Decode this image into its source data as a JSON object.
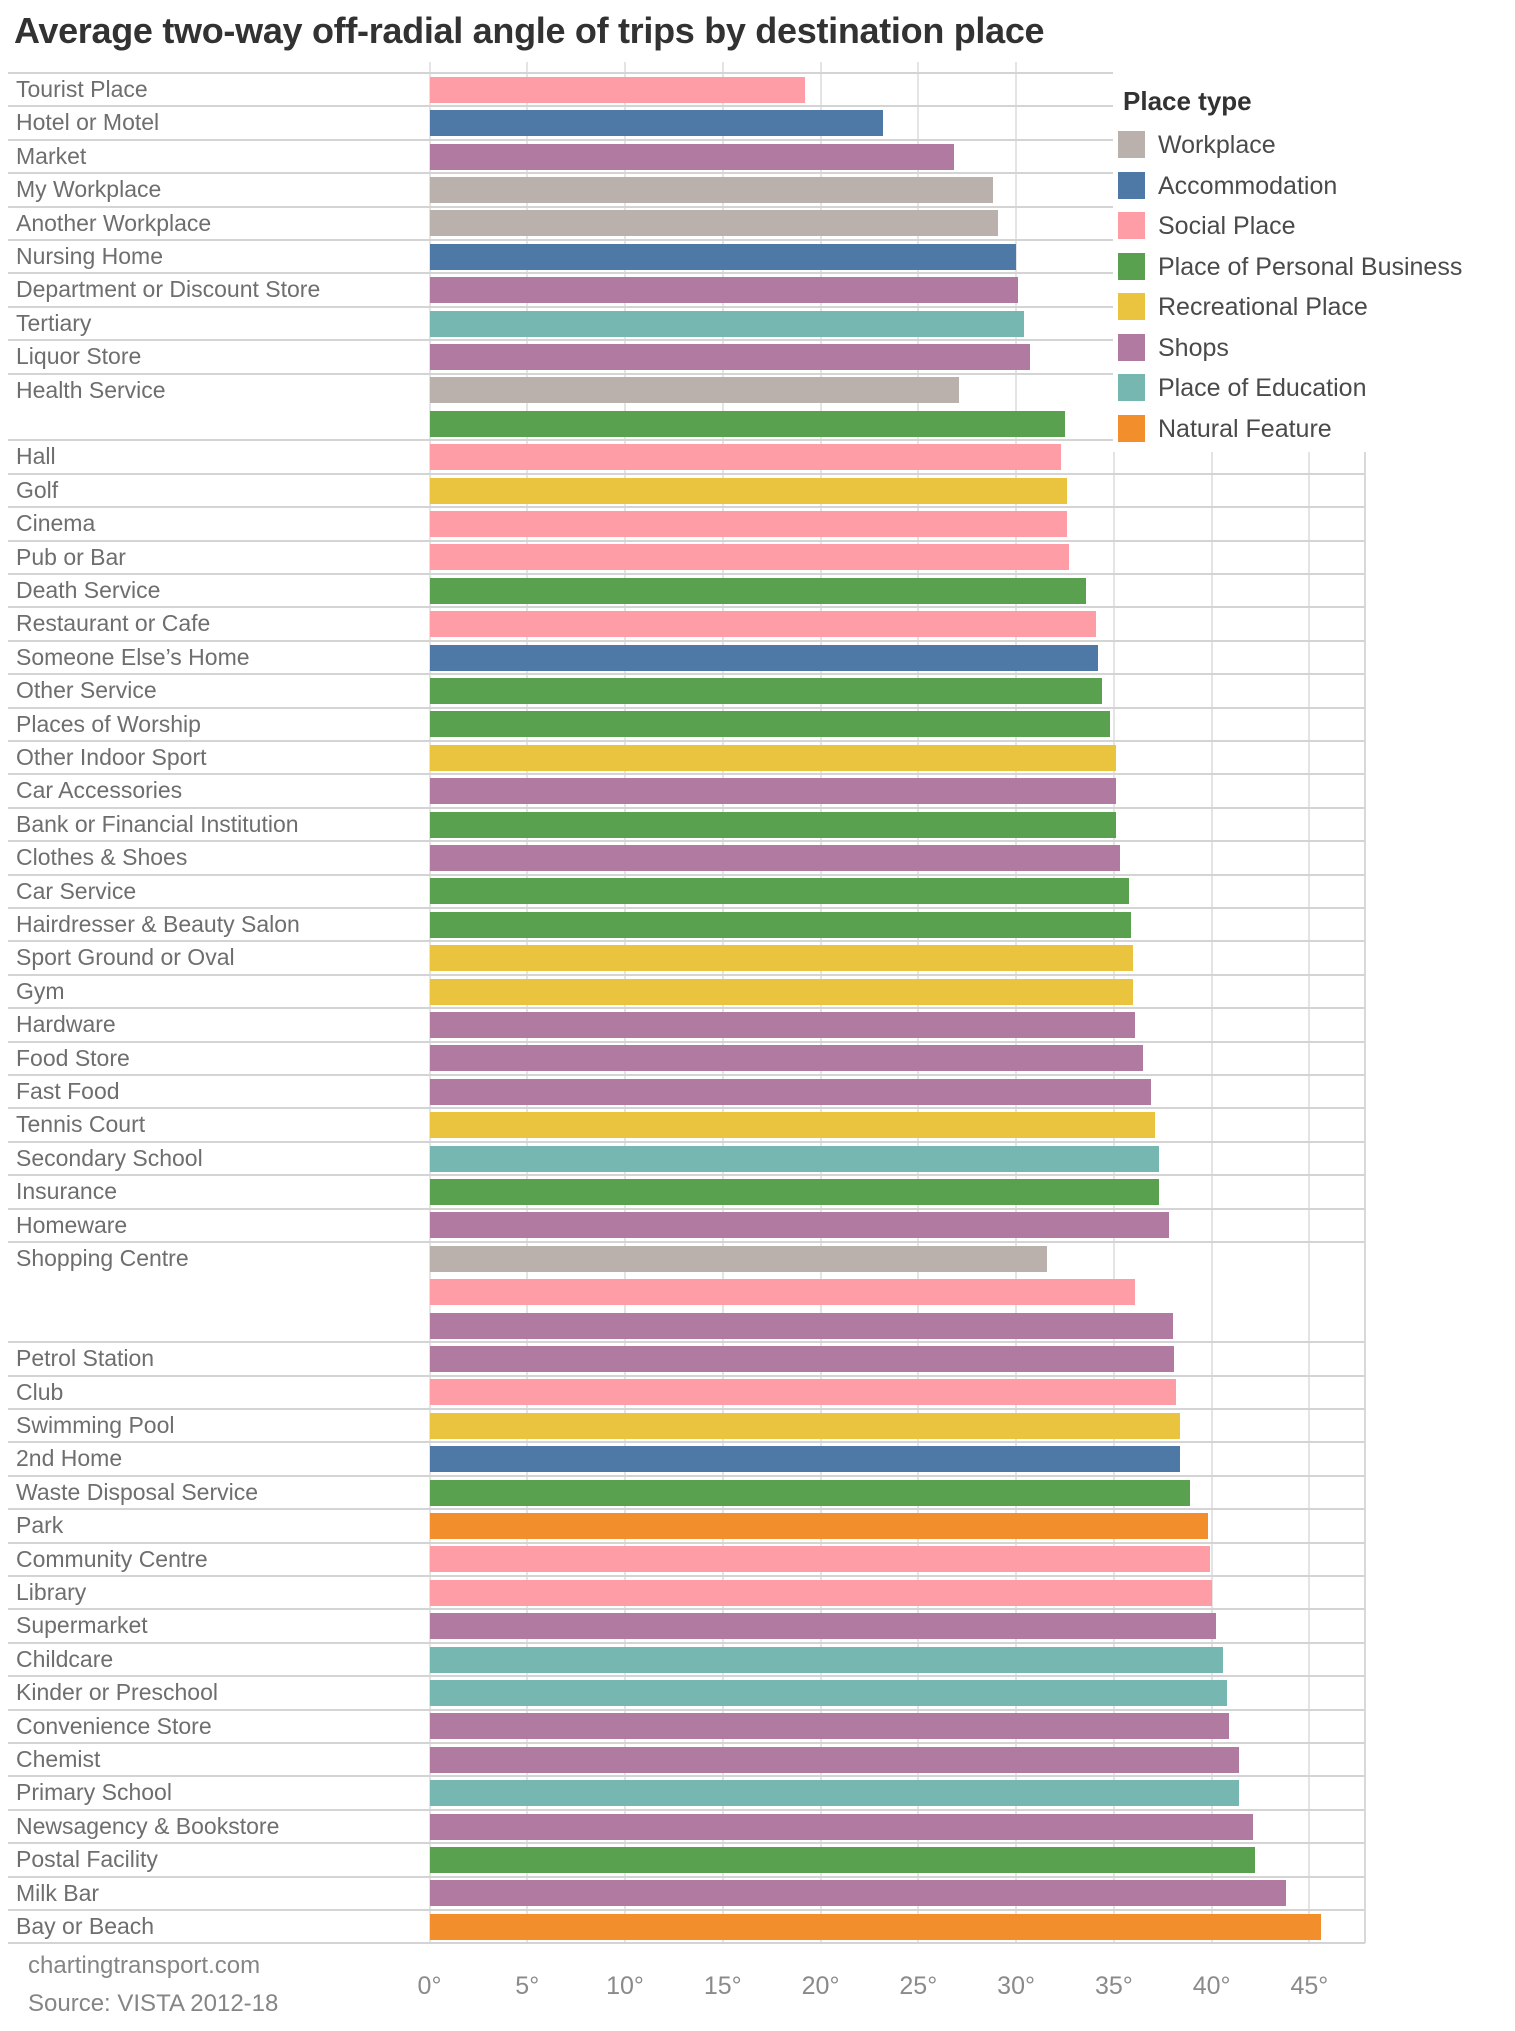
{
  "title": "Average two-way off-radial angle of trips by destination place",
  "footer": {
    "line1": "chartingtransport.com",
    "line2": "Source: VISTA 2012-18"
  },
  "legend": {
    "title": "Place type",
    "items": [
      {
        "key": "workplace",
        "label": "Workplace",
        "color": "#bab0ac"
      },
      {
        "key": "accommodation",
        "label": "Accommodation",
        "color": "#4e79a7"
      },
      {
        "key": "social",
        "label": "Social Place",
        "color": "#ff9da7"
      },
      {
        "key": "personal_business",
        "label": "Place of Personal Business",
        "color": "#59a14f"
      },
      {
        "key": "recreational",
        "label": "Recreational Place",
        "color": "#eac43f"
      },
      {
        "key": "shops",
        "label": "Shops",
        "color": "#b07aa1"
      },
      {
        "key": "education",
        "label": "Place of Education",
        "color": "#76b7b2"
      },
      {
        "key": "natural",
        "label": "Natural Feature",
        "color": "#f28e2b"
      }
    ]
  },
  "axis": {
    "ticks": [
      0,
      5,
      10,
      15,
      20,
      25,
      30,
      35,
      40,
      45
    ],
    "unit": "°"
  },
  "chart_data": {
    "type": "bar",
    "orientation": "horizontal",
    "title": "Average two-way off-radial angle of trips by destination place",
    "value_unit": "degrees",
    "xlim": [
      0,
      47.8
    ],
    "grid": true,
    "legend_position": "top-right",
    "rows": [
      {
        "label": "Tourist Place",
        "place_type": "social",
        "value": 19.2
      },
      {
        "label": "Hotel or Motel",
        "place_type": "accommodation",
        "value": 23.2
      },
      {
        "label": "Market",
        "place_type": "shops",
        "value": 26.8
      },
      {
        "label": "My Workplace",
        "place_type": "workplace",
        "value": 28.8
      },
      {
        "label": "Another Workplace",
        "place_type": "workplace",
        "value": 29.1
      },
      {
        "label": "Nursing Home",
        "place_type": "accommodation",
        "value": 30.0
      },
      {
        "label": "Department or Discount Store",
        "place_type": "shops",
        "value": 30.1
      },
      {
        "label": "Tertiary",
        "place_type": "education",
        "value": 30.4
      },
      {
        "label": "Liquor Store",
        "place_type": "shops",
        "value": 30.7
      },
      {
        "label": "Health Service",
        "place_type": "workplace",
        "value": 27.1
      },
      {
        "label": "",
        "place_type": "personal_business",
        "value": 32.5
      },
      {
        "label": "Hall",
        "place_type": "social",
        "value": 32.3
      },
      {
        "label": "Golf",
        "place_type": "recreational",
        "value": 32.6
      },
      {
        "label": "Cinema",
        "place_type": "social",
        "value": 32.6
      },
      {
        "label": "Pub or Bar",
        "place_type": "social",
        "value": 32.7
      },
      {
        "label": "Death Service",
        "place_type": "personal_business",
        "value": 33.6
      },
      {
        "label": "Restaurant or Cafe",
        "place_type": "social",
        "value": 34.1
      },
      {
        "label": "Someone Else’s Home",
        "place_type": "accommodation",
        "value": 34.2
      },
      {
        "label": "Other Service",
        "place_type": "personal_business",
        "value": 34.4
      },
      {
        "label": "Places of Worship",
        "place_type": "personal_business",
        "value": 34.8
      },
      {
        "label": "Other Indoor Sport",
        "place_type": "recreational",
        "value": 35.1
      },
      {
        "label": "Car Accessories",
        "place_type": "shops",
        "value": 35.1
      },
      {
        "label": "Bank or Financial Institution",
        "place_type": "personal_business",
        "value": 35.1
      },
      {
        "label": "Clothes & Shoes",
        "place_type": "shops",
        "value": 35.3
      },
      {
        "label": "Car Service",
        "place_type": "personal_business",
        "value": 35.8
      },
      {
        "label": "Hairdresser & Beauty Salon",
        "place_type": "personal_business",
        "value": 35.9
      },
      {
        "label": "Sport Ground or Oval",
        "place_type": "recreational",
        "value": 36.0
      },
      {
        "label": "Gym",
        "place_type": "recreational",
        "value": 36.0
      },
      {
        "label": "Hardware",
        "place_type": "shops",
        "value": 36.1
      },
      {
        "label": "Food Store",
        "place_type": "shops",
        "value": 36.5
      },
      {
        "label": "Fast Food",
        "place_type": "shops",
        "value": 36.9
      },
      {
        "label": "Tennis Court",
        "place_type": "recreational",
        "value": 37.1
      },
      {
        "label": "Secondary School",
        "place_type": "education",
        "value": 37.3
      },
      {
        "label": "Insurance",
        "place_type": "personal_business",
        "value": 37.3
      },
      {
        "label": "Homeware",
        "place_type": "shops",
        "value": 37.8
      },
      {
        "label": "Shopping Centre",
        "place_type": "workplace",
        "value": 31.6
      },
      {
        "label": "",
        "place_type": "social",
        "value": 36.1
      },
      {
        "label": "",
        "place_type": "shops",
        "value": 38.0
      },
      {
        "label": "Petrol Station",
        "place_type": "shops",
        "value": 38.1
      },
      {
        "label": "Club",
        "place_type": "social",
        "value": 38.2
      },
      {
        "label": "Swimming Pool",
        "place_type": "recreational",
        "value": 38.4
      },
      {
        "label": "2nd Home",
        "place_type": "accommodation",
        "value": 38.4
      },
      {
        "label": "Waste Disposal Service",
        "place_type": "personal_business",
        "value": 38.9
      },
      {
        "label": "Park",
        "place_type": "natural",
        "value": 39.8
      },
      {
        "label": "Community Centre",
        "place_type": "social",
        "value": 39.9
      },
      {
        "label": "Library",
        "place_type": "social",
        "value": 40.0
      },
      {
        "label": "Supermarket",
        "place_type": "shops",
        "value": 40.2
      },
      {
        "label": "Childcare",
        "place_type": "education",
        "value": 40.6
      },
      {
        "label": "Kinder or Preschool",
        "place_type": "education",
        "value": 40.8
      },
      {
        "label": "Convenience Store",
        "place_type": "shops",
        "value": 40.9
      },
      {
        "label": "Chemist",
        "place_type": "shops",
        "value": 41.4
      },
      {
        "label": "Primary School",
        "place_type": "education",
        "value": 41.4
      },
      {
        "label": "Newsagency & Bookstore",
        "place_type": "shops",
        "value": 42.1
      },
      {
        "label": "Postal Facility",
        "place_type": "personal_business",
        "value": 42.2
      },
      {
        "label": "Milk Bar",
        "place_type": "shops",
        "value": 43.8
      },
      {
        "label": "Bay or Beach",
        "place_type": "natural",
        "value": 45.6
      }
    ]
  }
}
